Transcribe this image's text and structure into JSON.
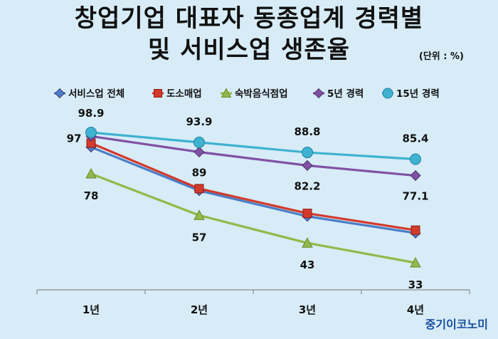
{
  "title_line1": "창업기업 대표자 동종업계 경력별",
  "title_line2": "및 서비스업 생존율",
  "unit": "(단위 : %)",
  "source": "중기이코노미",
  "chart_data": {
    "type": "line",
    "categories": [
      "1년",
      "2년",
      "3년",
      "4년"
    ],
    "ylim": [
      20,
      105
    ],
    "legend_position": "top",
    "grid": false,
    "series": [
      {
        "name": "서비스업 전체",
        "color": "#4a7ec6",
        "marker": "diamond",
        "values": [
          91.5,
          69.5,
          56.5,
          48.0
        ]
      },
      {
        "name": "도소매업",
        "color": "#d33a2c",
        "marker": "square",
        "values": [
          93.5,
          70.5,
          58.0,
          49.5
        ]
      },
      {
        "name": "숙박음식점업",
        "color": "#93b84a",
        "marker": "triangle",
        "values": [
          78,
          57,
          43,
          33
        ],
        "labels": [
          "78",
          "57",
          "43",
          "33"
        ]
      },
      {
        "name": "5년 경력",
        "color": "#8052a3",
        "marker": "diamond",
        "values": [
          97,
          89,
          82.2,
          77.1
        ],
        "labels": [
          "97",
          "89",
          "82.2",
          "77.1"
        ]
      },
      {
        "name": "15년 경력",
        "color": "#3fb2d1",
        "marker": "circle",
        "values": [
          98.9,
          93.9,
          88.8,
          85.4
        ],
        "labels": [
          "98.9",
          "93.9",
          "88.8",
          "85.4"
        ]
      }
    ]
  }
}
